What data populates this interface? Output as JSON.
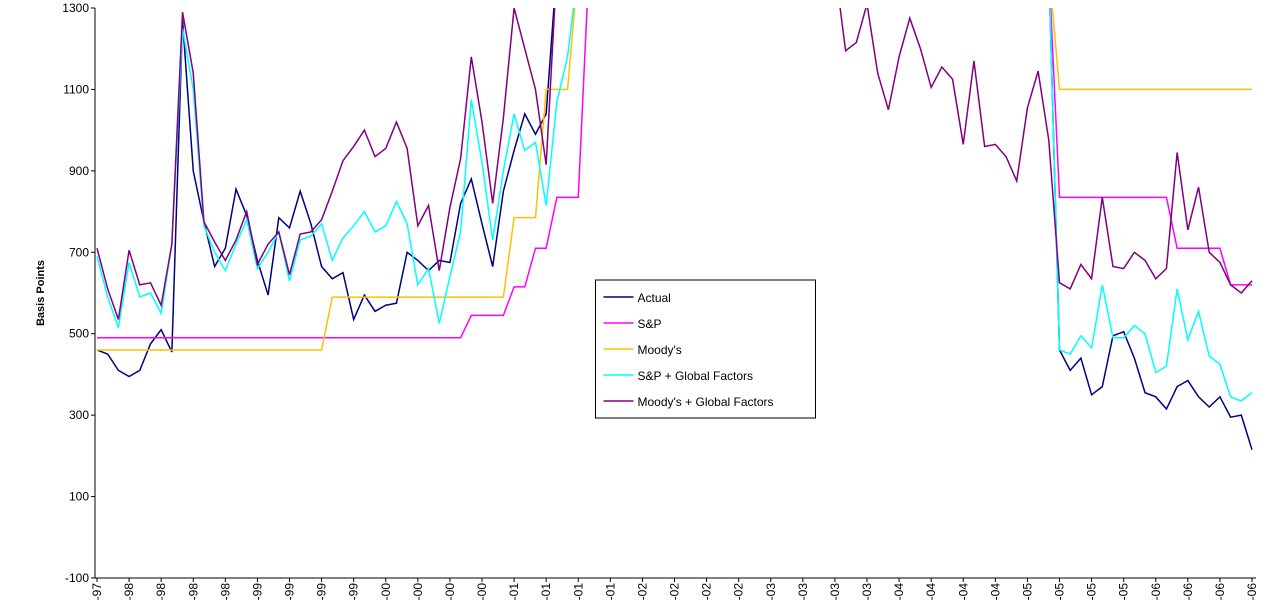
{
  "chart_data": {
    "type": "line",
    "y_label": "Basis Points",
    "categories": [
      "Dec-97",
      null,
      null,
      "Mar-98",
      null,
      null,
      "Jun-98",
      null,
      null,
      "Sep-98",
      null,
      null,
      "Dec-98",
      null,
      null,
      "Mar-99",
      null,
      null,
      "Jun-99",
      null,
      null,
      "Sep-99",
      null,
      null,
      "Dec-99",
      null,
      null,
      "Mar-00",
      null,
      null,
      "Jun-00",
      null,
      null,
      "Sep-00",
      null,
      null,
      "Dec-00",
      null,
      null,
      "Mar-01",
      null,
      null,
      "Jun-01",
      null,
      null,
      "Sep-01",
      null,
      null,
      "Dec-01",
      null,
      null,
      "Mar-02",
      null,
      null,
      "Jun-02",
      null,
      null,
      "Sep-02",
      null,
      null,
      "Dec-02",
      null,
      null,
      "Mar-03",
      null,
      null,
      "Jun-03",
      null,
      null,
      "Sep-03",
      null,
      null,
      "Dec-03",
      null,
      null,
      "Mar-04",
      null,
      null,
      "Jun-04",
      null,
      null,
      "Sep-04",
      null,
      null,
      "Dec-04",
      null,
      null,
      "Mar-05",
      null,
      null,
      "Jun-05",
      null,
      null,
      "Sep-05",
      null,
      null,
      "Dec-05",
      null,
      null,
      "Mar-06",
      null,
      null,
      "Jun-06",
      null,
      null,
      "Sep-06",
      null,
      null,
      "Dec-06"
    ],
    "series": [
      {
        "name": "Actual",
        "color": "#000080",
        "values": [
          460,
          450,
          410,
          395,
          410,
          475,
          510,
          455,
          1270,
          900,
          775,
          665,
          710,
          855,
          790,
          680,
          595,
          785,
          760,
          850,
          770,
          665,
          635,
          650,
          535,
          595,
          555,
          570,
          575,
          700,
          680,
          655,
          680,
          675,
          820,
          880,
          770,
          665,
          850,
          950,
          1040,
          990,
          1040,
          1400,
          null,
          null,
          null,
          null,
          null,
          null,
          null,
          null,
          null,
          null,
          null,
          null,
          null,
          null,
          null,
          null,
          null,
          null,
          null,
          null,
          null,
          null,
          null,
          null,
          null,
          null,
          null,
          null,
          null,
          null,
          null,
          null,
          null,
          null,
          null,
          null,
          null,
          null,
          null,
          null,
          null,
          null,
          null,
          null,
          null,
          1400,
          460,
          410,
          440,
          350,
          370,
          495,
          505,
          440,
          355,
          345,
          315,
          370,
          385,
          345,
          320,
          345,
          295,
          300,
          215
        ]
      },
      {
        "name": "S&P",
        "color": "#ff00ff",
        "values": [
          490,
          490,
          490,
          490,
          490,
          490,
          490,
          490,
          490,
          490,
          490,
          490,
          490,
          490,
          490,
          490,
          490,
          490,
          490,
          490,
          490,
          490,
          490,
          490,
          490,
          490,
          490,
          490,
          490,
          490,
          490,
          490,
          490,
          490,
          490,
          545,
          545,
          545,
          545,
          615,
          615,
          710,
          710,
          835,
          835,
          835,
          1400,
          null,
          null,
          null,
          null,
          null,
          null,
          null,
          null,
          null,
          null,
          null,
          null,
          null,
          null,
          null,
          null,
          null,
          null,
          null,
          null,
          null,
          null,
          null,
          null,
          null,
          null,
          null,
          null,
          null,
          null,
          null,
          null,
          null,
          null,
          null,
          null,
          null,
          null,
          null,
          null,
          null,
          null,
          1400,
          835,
          835,
          835,
          835,
          835,
          835,
          835,
          835,
          835,
          835,
          835,
          710,
          710,
          710,
          710,
          710,
          620,
          620,
          620
        ]
      },
      {
        "name": "Moody's",
        "color": "#ffc000",
        "values": [
          460,
          460,
          460,
          460,
          460,
          460,
          460,
          460,
          460,
          460,
          460,
          460,
          460,
          460,
          460,
          460,
          460,
          460,
          460,
          460,
          460,
          460,
          590,
          590,
          590,
          590,
          590,
          590,
          590,
          590,
          590,
          590,
          590,
          590,
          590,
          590,
          590,
          590,
          590,
          785,
          785,
          785,
          1100,
          1100,
          1100,
          1400,
          null,
          null,
          null,
          null,
          null,
          null,
          null,
          null,
          null,
          null,
          null,
          null,
          null,
          null,
          null,
          null,
          null,
          null,
          null,
          null,
          null,
          null,
          null,
          null,
          null,
          null,
          null,
          null,
          null,
          null,
          null,
          null,
          null,
          null,
          null,
          null,
          null,
          null,
          null,
          null,
          null,
          null,
          null,
          1400,
          1100,
          1100,
          1100,
          1100,
          1100,
          1100,
          1100,
          1100,
          1100,
          1100,
          1100,
          1100,
          1100,
          1100,
          1100,
          1100,
          1100,
          1100,
          1100
        ]
      },
      {
        "name": "S&P + Global Factors",
        "color": "#00ffff",
        "values": [
          690,
          590,
          515,
          675,
          590,
          600,
          550,
          720,
          1250,
          1100,
          765,
          700,
          655,
          720,
          780,
          660,
          700,
          750,
          630,
          730,
          740,
          770,
          680,
          735,
          765,
          800,
          750,
          765,
          825,
          770,
          620,
          660,
          525,
          640,
          750,
          1075,
          920,
          730,
          900,
          1040,
          950,
          970,
          815,
          1070,
          1180,
          1400,
          null,
          null,
          null,
          null,
          null,
          null,
          null,
          null,
          null,
          null,
          null,
          null,
          null,
          null,
          null,
          null,
          null,
          null,
          null,
          null,
          null,
          null,
          null,
          null,
          null,
          null,
          null,
          null,
          null,
          null,
          null,
          null,
          null,
          null,
          null,
          null,
          null,
          null,
          null,
          null,
          null,
          null,
          null,
          1400,
          460,
          450,
          495,
          465,
          620,
          490,
          490,
          520,
          500,
          405,
          420,
          610,
          485,
          555,
          445,
          425,
          345,
          335,
          355
        ]
      },
      {
        "name": "Moody's + Global Factors",
        "color": "#800080",
        "values": [
          710,
          610,
          535,
          705,
          620,
          625,
          570,
          720,
          1290,
          1140,
          775,
          725,
          680,
          730,
          800,
          670,
          720,
          750,
          645,
          745,
          750,
          780,
          850,
          925,
          960,
          1000,
          935,
          955,
          1020,
          955,
          765,
          815,
          655,
          810,
          930,
          1180,
          1020,
          820,
          1030,
          1300,
          1200,
          1100,
          915,
          1400,
          null,
          null,
          null,
          null,
          null,
          null,
          null,
          null,
          null,
          null,
          null,
          null,
          null,
          null,
          null,
          null,
          null,
          null,
          null,
          null,
          null,
          null,
          null,
          null,
          null,
          1400,
          1195,
          1215,
          1310,
          1140,
          1050,
          1180,
          1275,
          1200,
          1105,
          1155,
          1125,
          965,
          1170,
          960,
          965,
          935,
          875,
          1055,
          1145,
          975,
          625,
          610,
          670,
          635,
          835,
          665,
          660,
          700,
          680,
          635,
          660,
          945,
          755,
          860,
          700,
          675,
          620,
          600,
          630
        ]
      }
    ],
    "ylim": [
      -100,
      1300
    ],
    "yticks": [
      -100,
      100,
      300,
      500,
      700,
      900,
      1100,
      1300
    ],
    "grid": false,
    "legend_position": "center"
  }
}
